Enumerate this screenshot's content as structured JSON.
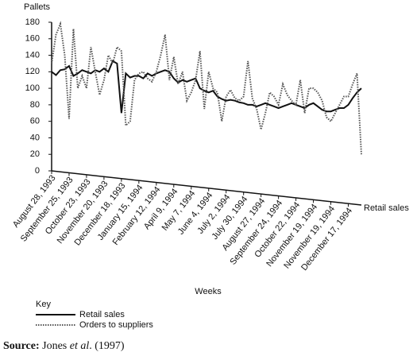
{
  "chart_data": {
    "type": "line",
    "y_label": "Pallets",
    "x_label": "Weeks",
    "axis_end_label": "Retail sales",
    "legend_title": "Key",
    "categories": [
      "August 28, 1993",
      null,
      null,
      null,
      "September 25, 1993",
      null,
      null,
      null,
      "October 23, 1993",
      null,
      null,
      null,
      "November 20, 1993",
      null,
      null,
      null,
      "December 18, 1993",
      null,
      null,
      null,
      "January 15, 1994",
      null,
      null,
      null,
      "February 12, 1994",
      null,
      null,
      null,
      "April 9, 1994",
      null,
      null,
      null,
      "May 7, 1994",
      null,
      null,
      null,
      "June 4, 1994",
      null,
      null,
      null,
      "July 2, 1994",
      null,
      null,
      null,
      "July 30, 1994",
      null,
      null,
      null,
      "August 27, 1994",
      null,
      null,
      null,
      "September 24, 1994",
      null,
      null,
      null,
      "October 22, 1994",
      null,
      null,
      null,
      "November 19, 1994",
      null,
      null,
      null,
      "November 19, 1994",
      null,
      null,
      null,
      "December 17, 1994",
      null,
      null,
      null
    ],
    "series": [
      {
        "name": "Retail sales",
        "color": "#111111",
        "line_style": "solid",
        "values": [
          120,
          116,
          122,
          123,
          127,
          115,
          118,
          122,
          120,
          118,
          122,
          120,
          124,
          120,
          133,
          130,
          70,
          118,
          113,
          115,
          115,
          112,
          118,
          115,
          118,
          120,
          122,
          120,
          112,
          107,
          110,
          108,
          110,
          112,
          100,
          97,
          95,
          97,
          90,
          87,
          85,
          86,
          85,
          83,
          82,
          80,
          80,
          78,
          80,
          82,
          80,
          78,
          76,
          78,
          80,
          82,
          80,
          78,
          76,
          80,
          82,
          78,
          74,
          72,
          72,
          74,
          76,
          76,
          80,
          88,
          95,
          100
        ]
      },
      {
        "name": "Orders to suppliers",
        "color": "#555555",
        "line_style": "dotted",
        "values": [
          130,
          165,
          178,
          140,
          63,
          172,
          100,
          115,
          100,
          150,
          120,
          92,
          110,
          140,
          130,
          150,
          145,
          55,
          60,
          110,
          118,
          120,
          112,
          108,
          120,
          140,
          165,
          110,
          138,
          105,
          120,
          85,
          95,
          110,
          145,
          75,
          120,
          100,
          95,
          60,
          90,
          98,
          88,
          85,
          90,
          133,
          88,
          75,
          50,
          70,
          95,
          90,
          80,
          105,
          92,
          85,
          80,
          110,
          70,
          100,
          100,
          95,
          85,
          65,
          60,
          70,
          80,
          90,
          90,
          105,
          118,
          20
        ]
      }
    ],
    "ylim": [
      0,
      180
    ],
    "yticks": [
      0,
      20,
      40,
      60,
      80,
      100,
      120,
      140,
      160,
      180
    ],
    "source": {
      "label": "Source:",
      "author": "Jones",
      "etal": "et al",
      "rest": ". (1997)"
    }
  }
}
